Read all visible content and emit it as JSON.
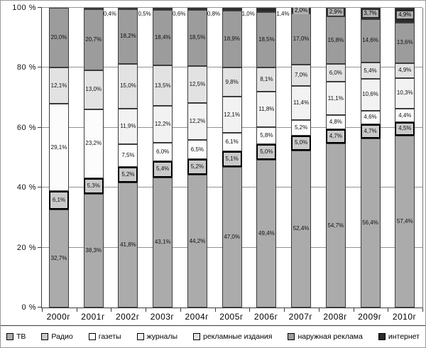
{
  "chart_data": {
    "type": "bar",
    "stacked": true,
    "percent_stacked": true,
    "grid": true,
    "legend_position": "bottom",
    "ylim": [
      0,
      100
    ],
    "y_ticks": [
      "0 %",
      "20 %",
      "40 %",
      "60 %",
      "80 %",
      "100 %"
    ],
    "categories": [
      "2000г",
      "2001г",
      "2002г",
      "2003г",
      "2004г",
      "2005г",
      "2006г",
      "2007г",
      "2008г",
      "2009г",
      "2010г"
    ],
    "series": [
      {
        "name": "ТВ",
        "color": "#ababab",
        "values": [
          32.7,
          38.3,
          41.8,
          43.1,
          44.2,
          47.0,
          49.4,
          52.4,
          54.7,
          56.4,
          57.4
        ]
      },
      {
        "name": "Радио",
        "color": "#c9c9c9",
        "values": [
          6.1,
          5.3,
          5.2,
          5.4,
          5.2,
          5.1,
          5.0,
          5.0,
          4.7,
          4.7,
          4.5
        ]
      },
      {
        "name": "газеты",
        "color": "#fcfcfc",
        "values": [
          29.1,
          23.2,
          7.5,
          6.0,
          6.5,
          6.1,
          5.8,
          5.2,
          4.8,
          4.6,
          4.4
        ]
      },
      {
        "name": "журналы",
        "color": "#f2f2f2",
        "values": [
          null,
          null,
          11.9,
          12.2,
          12.2,
          12.1,
          11.8,
          11.4,
          11.1,
          10.6,
          10.3
        ]
      },
      {
        "name": "рекламные издания",
        "color": "#e2e2e2",
        "values": [
          12.1,
          13.0,
          15.0,
          13.5,
          12.5,
          9.8,
          8.1,
          7.0,
          6.0,
          5.4,
          4.9
        ]
      },
      {
        "name": "наружная реклама",
        "color": "#9c9c9c",
        "values": [
          20.0,
          20.7,
          18.2,
          18.4,
          18.5,
          18.9,
          18.5,
          17.0,
          15.8,
          14.6,
          13.6
        ]
      },
      {
        "name": "интернет",
        "color": "#2a2a2a",
        "values": [
          null,
          0.4,
          0.5,
          0.6,
          0.8,
          1.0,
          1.4,
          2.0,
          2.9,
          3.7,
          4.9
        ]
      }
    ],
    "value_label_decimal_separator": ","
  }
}
